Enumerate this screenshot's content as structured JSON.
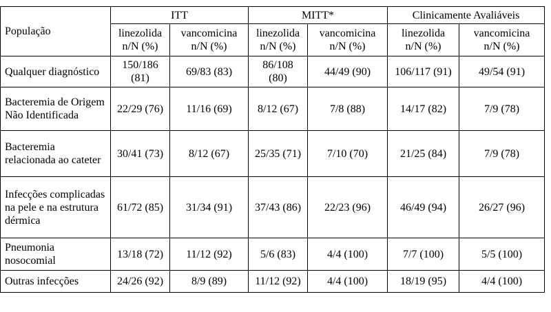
{
  "table": {
    "population_header": "População",
    "groups": [
      "ITT",
      "MITT*",
      "Clinicamente Avaliáveis"
    ],
    "subheaders": [
      {
        "drug": "linezolida",
        "unit": "n/N (%)"
      },
      {
        "drug": "vancomicina",
        "unit": "n/N (%)"
      },
      {
        "drug": "linezolida",
        "unit": "n/N (%)"
      },
      {
        "drug": "vancomicina",
        "unit": "n/N (%)"
      },
      {
        "drug": "linezolida",
        "unit": "n/N (%)"
      },
      {
        "drug": "vancomicina",
        "unit": "n/N (%)"
      }
    ],
    "rows": [
      {
        "label": "Qualquer diagnóstico",
        "values": [
          "150/186 (81)",
          "69/83 (83)",
          "86/108 (80)",
          "44/49 (90)",
          "106/117 (91)",
          "49/54 (91)"
        ]
      },
      {
        "label": "Bacteremia de Origem Não Identificada",
        "values": [
          "22/29 (76)",
          "11/16 (69)",
          "8/12 (67)",
          "7/8 (88)",
          "14/17 (82)",
          "7/9 (78)"
        ]
      },
      {
        "label": "Bacteremia relacionada ao cateter",
        "values": [
          "30/41 (73)",
          "8/12 (67)",
          "25/35 (71)",
          "7/10 (70)",
          "21/25 (84)",
          "7/9 (78)"
        ]
      },
      {
        "label": "Infecções complicadas na pele e na estrutura dérmica",
        "values": [
          "61/72 (85)",
          "31/34 (91)",
          "37/43 (86)",
          "22/23 (96)",
          "46/49 (94)",
          "26/27 (96)"
        ]
      },
      {
        "label": "Pneumonia nosocomial",
        "values": [
          "13/18 (72)",
          "11/12 (92)",
          "5/6 (83)",
          "4/4 (100)",
          "7/7 (100)",
          "5/5 (100)"
        ]
      },
      {
        "label": "Outras infecções",
        "values": [
          "24/26 (92)",
          "8/9 (89)",
          "11/12 (92)",
          "4/4 (100)",
          "18/19 (95)",
          "4/4 (100)"
        ]
      }
    ]
  }
}
